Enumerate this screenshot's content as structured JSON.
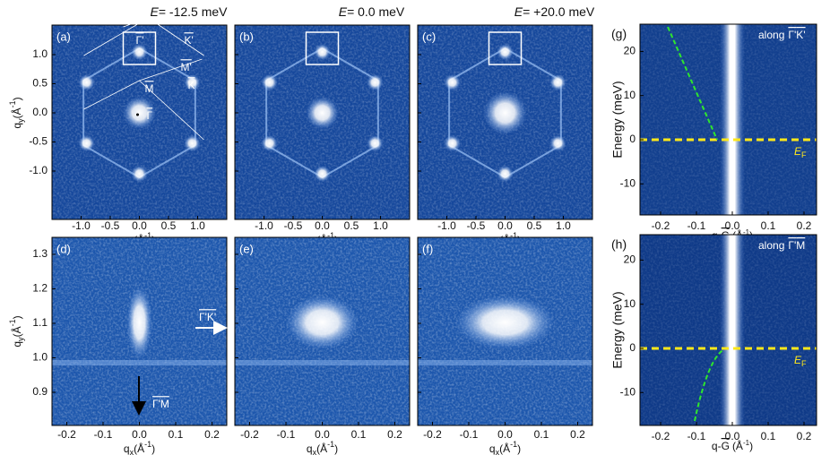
{
  "top_panels": [
    {
      "label": "(a)",
      "symbol": "E",
      "energy": "= -12.5 meV"
    },
    {
      "label": "(b)",
      "symbol": "E",
      "energy": "= 0.0 meV"
    },
    {
      "label": "(c)",
      "symbol": "E",
      "energy": "= +20.0 meV"
    }
  ],
  "bottom_panels": [
    {
      "label": "(d)"
    },
    {
      "label": "(e)"
    },
    {
      "label": "(f)"
    }
  ],
  "annotations_a": {
    "gamma_prime": "Γ'",
    "k_prime": "K'",
    "m_prime": "M'",
    "k": "K",
    "m": "M",
    "gamma": "Γ"
  },
  "annotations_d": {
    "gk": "Γ'K'",
    "gm": "Γ'M"
  },
  "axes": {
    "q": "q",
    "x": "x",
    "y": "y",
    "unit_open": "(Å",
    "unit_exp": "-1",
    "unit_close": ")",
    "top_ticks": [
      "-1.0",
      "-0.5",
      "0.0",
      "0.5",
      "1.0"
    ],
    "bottom_xticks": [
      "-0.2",
      "-0.1",
      "0.0",
      "0.1",
      "0.2"
    ],
    "bottom_yticks": [
      "0.9",
      "1.0",
      "1.1",
      "1.2",
      "1.3"
    ]
  },
  "spectra": {
    "energy_label": "Energy (meV)",
    "energy_ticks": [
      "-10",
      "0",
      "10",
      "20"
    ],
    "x_ticks": [
      "-0.2",
      "-0.1",
      "0.0",
      "0.1",
      "0.2"
    ],
    "x_label_q": "q-",
    "x_label_g": "G",
    "ef_e": "E",
    "ef_f": "F",
    "panels": [
      {
        "label": "(g)",
        "along": "along",
        "dir1": "Γ'",
        "dir2": "K'"
      },
      {
        "label": "(h)",
        "along": "along",
        "dir1": "Γ'",
        "dir2": "M"
      }
    ]
  }
}
